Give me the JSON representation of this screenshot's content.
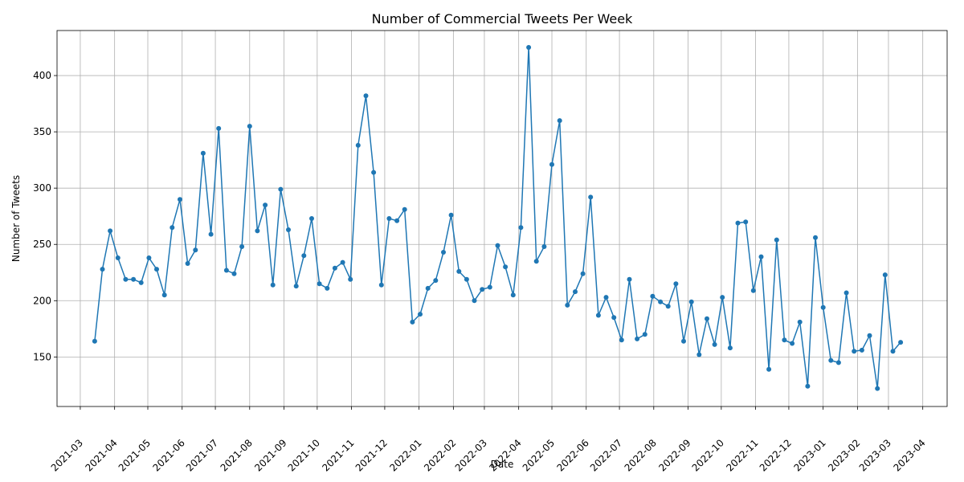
{
  "chart_data": {
    "type": "line",
    "title": "Number of Commercial Tweets Per Week",
    "xlabel": "Date",
    "ylabel": "Number of Tweets",
    "x_ticks": [
      "2021-03-01",
      "2021-04-01",
      "2021-05-01",
      "2021-06-01",
      "2021-07-01",
      "2021-08-01",
      "2021-09-01",
      "2021-10-01",
      "2021-11-01",
      "2021-12-01",
      "2022-01-01",
      "2022-02-01",
      "2022-03-01",
      "2022-04-01",
      "2022-05-01",
      "2022-06-01",
      "2022-07-01",
      "2022-08-01",
      "2022-09-01",
      "2022-10-01",
      "2022-11-01",
      "2022-12-01",
      "2023-01-01",
      "2023-02-01",
      "2023-03-01",
      "2023-04-01"
    ],
    "x_tick_labels": [
      "2021-03",
      "2021-04",
      "2021-05",
      "2021-06",
      "2021-07",
      "2021-08",
      "2021-09",
      "2021-10",
      "2021-11",
      "2021-12",
      "2022-01",
      "2022-02",
      "2022-03",
      "2022-04",
      "2022-05",
      "2022-06",
      "2022-07",
      "2022-08",
      "2022-09",
      "2022-10",
      "2022-11",
      "2022-12",
      "2023-01",
      "2023-02",
      "2023-03",
      "2023-04"
    ],
    "y_ticks": [
      150,
      200,
      250,
      300,
      350,
      400
    ],
    "ylim": [
      106,
      440
    ],
    "xlim": [
      "2021-02-08",
      "2023-04-23"
    ],
    "grid": true,
    "color": "#1f77b4",
    "marker": "circle",
    "x_start": "2021-03-14",
    "x_step_days": 7,
    "values": [
      164,
      228,
      262,
      238,
      219,
      219,
      216,
      238,
      228,
      205,
      265,
      290,
      233,
      245,
      331,
      259,
      353,
      227,
      224,
      248,
      355,
      262,
      285,
      214,
      299,
      263,
      213,
      240,
      273,
      215,
      211,
      229,
      234,
      219,
      338,
      382,
      314,
      214,
      273,
      271,
      281,
      181,
      188,
      211,
      218,
      243,
      276,
      226,
      219,
      200,
      210,
      212,
      249,
      230,
      205,
      265,
      425,
      235,
      248,
      321,
      360,
      196,
      208,
      224,
      292,
      187,
      203,
      185,
      165,
      219,
      166,
      170,
      204,
      199,
      195,
      215,
      164,
      199,
      152,
      184,
      161,
      203,
      158,
      269,
      270,
      209,
      239,
      139,
      254,
      165,
      162,
      181,
      124,
      256,
      194,
      147,
      145,
      207,
      155,
      156,
      169,
      122,
      223,
      155,
      163
    ]
  }
}
